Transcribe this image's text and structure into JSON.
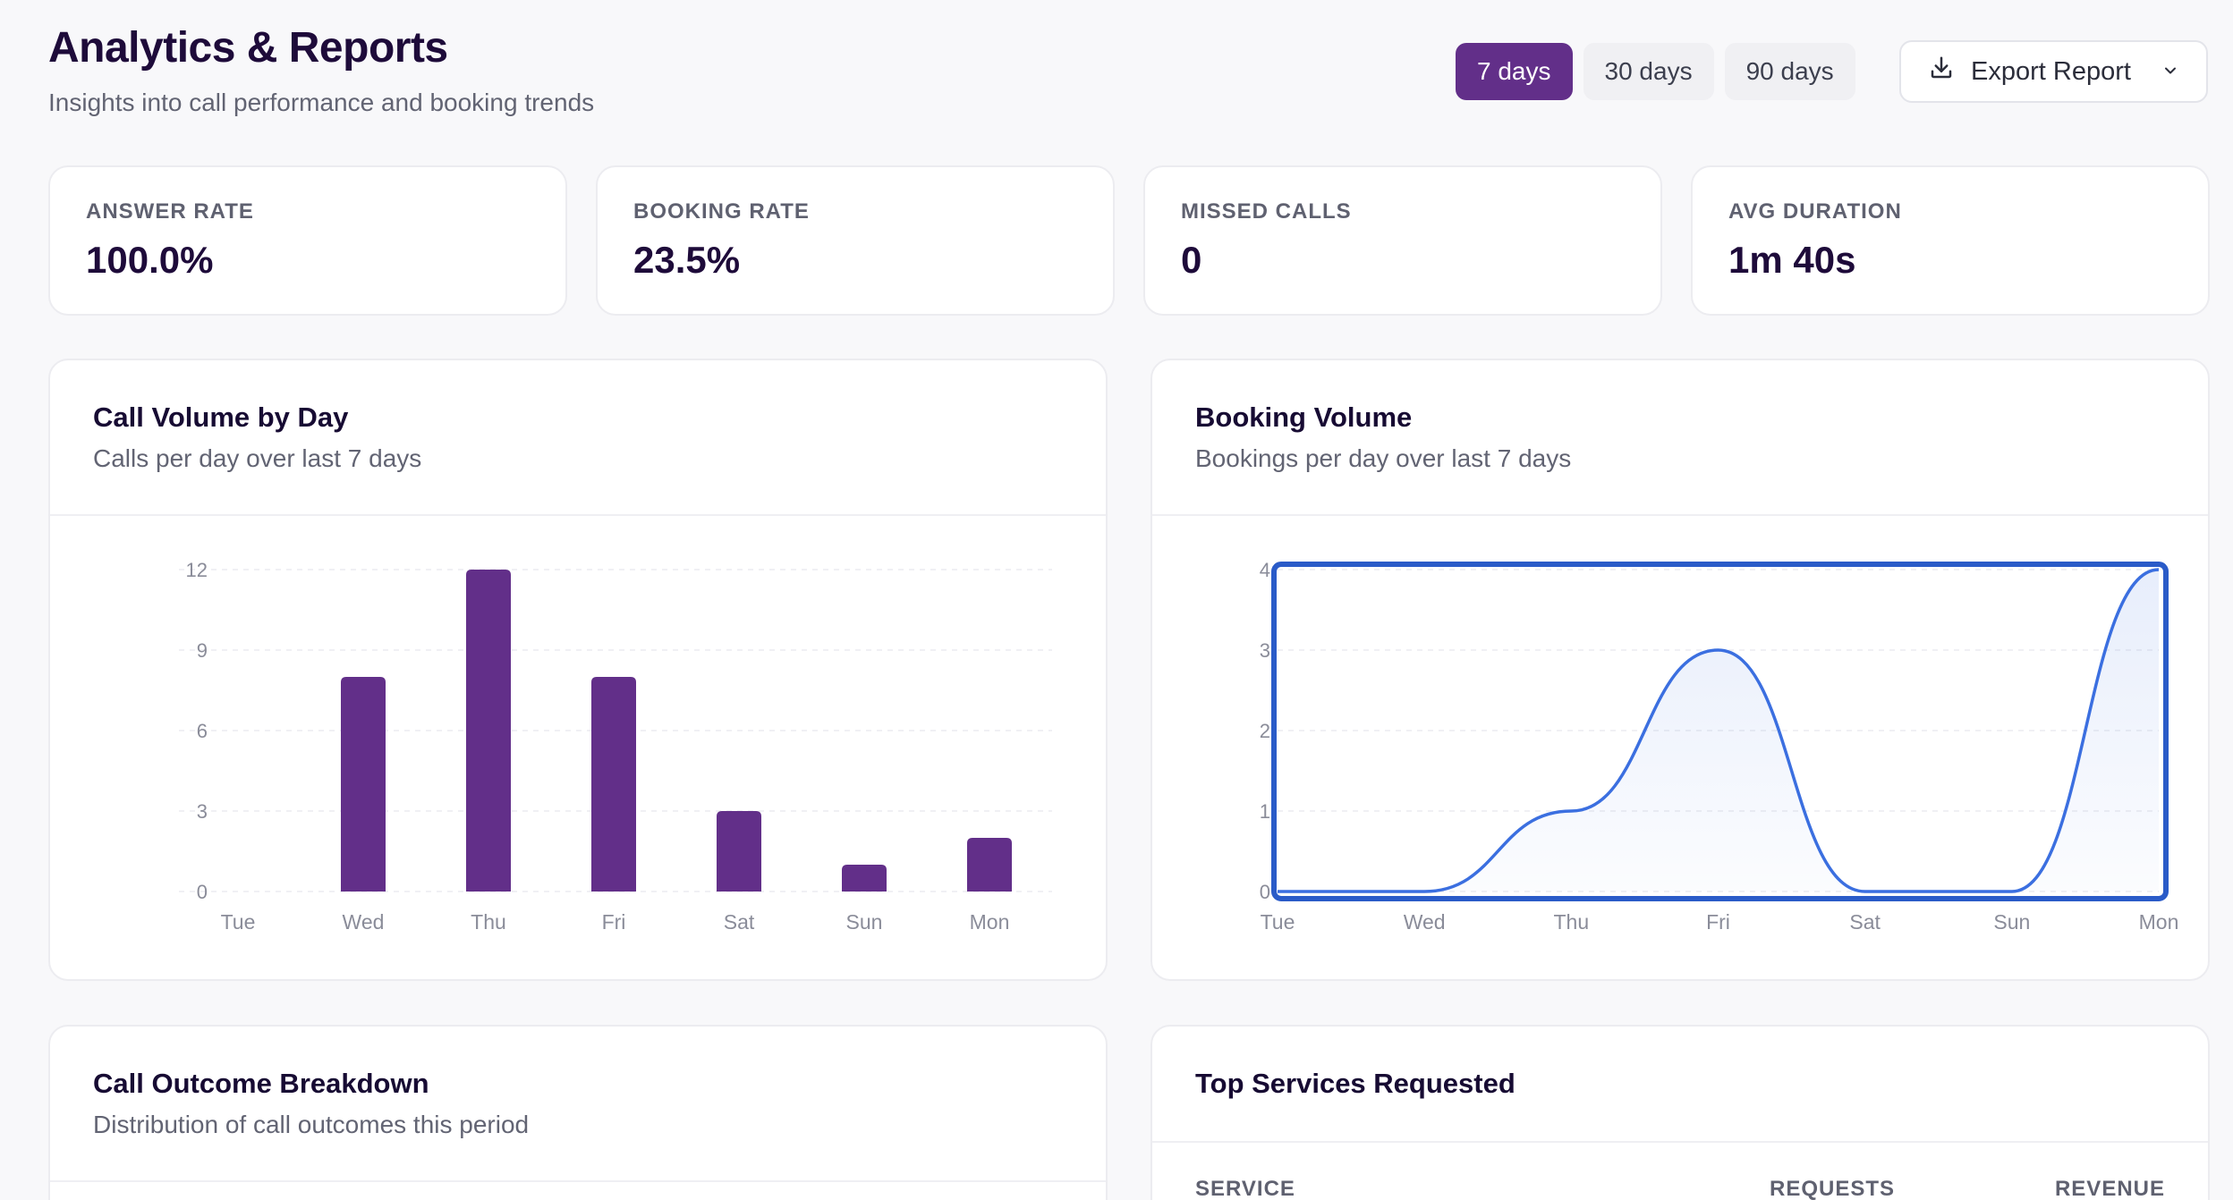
{
  "header": {
    "title": "Analytics & Reports",
    "subtitle": "Insights into call performance and booking trends"
  },
  "range": {
    "options": [
      "7 days",
      "30 days",
      "90 days"
    ],
    "selected": "7 days"
  },
  "export": {
    "label": "Export Report",
    "icon": "download-icon",
    "chevron_icon": "chevron-down-icon"
  },
  "stats": [
    {
      "label": "ANSWER RATE",
      "value": "100.0%"
    },
    {
      "label": "BOOKING RATE",
      "value": "23.5%"
    },
    {
      "label": "MISSED CALLS",
      "value": "0"
    },
    {
      "label": "AVG DURATION",
      "value": "1m 40s"
    }
  ],
  "call_volume": {
    "title": "Call Volume by Day",
    "subtitle": "Calls per day over last 7 days"
  },
  "booking_volume": {
    "title": "Booking Volume",
    "subtitle": "Bookings per day over last 7 days"
  },
  "outcome": {
    "title": "Call Outcome Breakdown",
    "subtitle": "Distribution of call outcomes this period"
  },
  "services": {
    "title": "Top Services Requested",
    "columns": [
      "SERVICE",
      "REQUESTS",
      "REVENUE"
    ]
  },
  "colors": {
    "accent": "#622f89",
    "line": "#3b6fe0",
    "focus_outline": "#2a5bc8"
  },
  "chart_data": [
    {
      "type": "bar",
      "categories": [
        "Tue",
        "Wed",
        "Thu",
        "Fri",
        "Sat",
        "Sun",
        "Mon"
      ],
      "values": [
        0,
        8,
        12,
        8,
        3,
        1,
        2
      ],
      "yticks": [
        0,
        3,
        6,
        9,
        12
      ],
      "ylim": [
        0,
        12
      ],
      "grid": true
    },
    {
      "type": "area",
      "categories": [
        "Tue",
        "Wed",
        "Thu",
        "Fri",
        "Sat",
        "Sun",
        "Mon"
      ],
      "values": [
        0,
        0,
        1,
        3,
        0,
        0,
        4
      ],
      "yticks": [
        0,
        1,
        2,
        3,
        4
      ],
      "ylim": [
        0,
        4
      ],
      "grid": true
    }
  ]
}
